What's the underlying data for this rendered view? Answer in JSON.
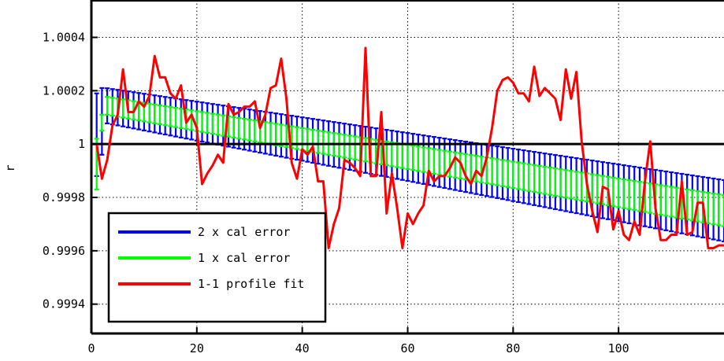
{
  "chart_data": {
    "type": "line",
    "title": "",
    "xlabel": "",
    "ylabel": "r",
    "xlim": [
      0,
      120
    ],
    "ylim": [
      0.99929,
      1.00054
    ],
    "xticks": [
      0,
      20,
      40,
      60,
      80,
      100
    ],
    "xtick_labels": [
      "0",
      "20",
      "40",
      "60",
      "80",
      "100"
    ],
    "yticks": [
      0.9994,
      0.9996,
      0.9998,
      1.0,
      1.0002,
      1.0004
    ],
    "ytick_labels": [
      "0.9994",
      "0.9996",
      "0.9998",
      "1",
      "1.0002",
      "1.0004"
    ],
    "grid": true,
    "reference_line": {
      "y": 1.0,
      "color": "#000000"
    },
    "legend": {
      "placement": "bottom-left",
      "entries": [
        {
          "label": "2 x cal error",
          "color": "#0000ff"
        },
        {
          "label": "1 x cal error",
          "color": "#00ff00"
        },
        {
          "label": "1-1 profile fit",
          "color": "#ff0000"
        }
      ]
    },
    "series": [
      {
        "key": "cal2",
        "style": "errorbar",
        "color": "#0000ff",
        "x_start": 1,
        "x_end": 120,
        "x_step": 1,
        "center_start": 1.00015,
        "center_end": 0.99975,
        "halfwidth_start": 6.5e-05,
        "halfwidth_end": 0.000115,
        "first_points": [
          {
            "x": 1,
            "center": 1.000035,
            "half": 0.000155
          },
          {
            "x": 2,
            "center": 1.000085,
            "half": 0.000125
          }
        ]
      },
      {
        "key": "cal1",
        "style": "errorbar",
        "color": "#00ff00",
        "x_start": 1,
        "x_end": 120,
        "x_step": 1,
        "center_start": 1.00015,
        "center_end": 0.99975,
        "halfwidth_start": 3.3e-05,
        "halfwidth_end": 5.8e-05,
        "first_points": [
          {
            "x": 1,
            "center": 0.999925,
            "half": 9.5e-05
          },
          {
            "x": 2,
            "center": 1.00008,
            "half": 3e-05
          }
        ]
      },
      {
        "key": "fit",
        "style": "line",
        "color": "#ff0000",
        "x": [
          1,
          2,
          3,
          4,
          5,
          6,
          7,
          8,
          9,
          10,
          11,
          12,
          13,
          14,
          15,
          16,
          17,
          18,
          19,
          20,
          21,
          22,
          23,
          24,
          25,
          26,
          27,
          28,
          29,
          30,
          31,
          32,
          33,
          34,
          35,
          36,
          37,
          38,
          39,
          40,
          41,
          42,
          43,
          44,
          45,
          46,
          47,
          48,
          49,
          50,
          51,
          52,
          53,
          54,
          55,
          56,
          57,
          58,
          59,
          60,
          61,
          62,
          63,
          64,
          65,
          66,
          67,
          68,
          69,
          70,
          71,
          72,
          73,
          74,
          75,
          76,
          77,
          78,
          79,
          80,
          81,
          82,
          83,
          84,
          85,
          86,
          87,
          88,
          89,
          90,
          91,
          92,
          93,
          94,
          95,
          96,
          97,
          98,
          99,
          100,
          101,
          102,
          103,
          104,
          105,
          106,
          107,
          108,
          109,
          110,
          111,
          112,
          113,
          114,
          115,
          116,
          117,
          118,
          119,
          120
        ],
        "y": [
          1.0,
          0.99987,
          0.99994,
          1.00007,
          1.00011,
          1.00028,
          1.00012,
          1.00012,
          1.00016,
          1.00014,
          1.00018,
          1.00033,
          1.00025,
          1.00025,
          1.00019,
          1.00017,
          1.00022,
          1.00008,
          1.00011,
          1.00006,
          0.99985,
          0.99989,
          0.99992,
          0.99996,
          0.99993,
          1.00015,
          1.00011,
          1.00012,
          1.00014,
          1.00014,
          1.00016,
          1.00006,
          1.00011,
          1.00021,
          1.00022,
          1.00032,
          1.00017,
          0.99993,
          0.99987,
          0.99998,
          0.99996,
          0.99999,
          0.99986,
          0.99986,
          0.99961,
          0.9997,
          0.99976,
          0.99994,
          0.99993,
          0.99991,
          0.99988,
          1.00036,
          0.99988,
          0.99988,
          1.00012,
          0.99974,
          0.99989,
          0.99976,
          0.99961,
          0.99974,
          0.9997,
          0.99974,
          0.99977,
          0.9999,
          0.99986,
          0.99988,
          0.99988,
          0.99991,
          0.99995,
          0.99993,
          0.99988,
          0.99985,
          0.9999,
          0.99988,
          0.99995,
          1.00006,
          1.0002,
          1.00024,
          1.00025,
          1.00023,
          1.00019,
          1.00019,
          1.00016,
          1.00029,
          1.00018,
          1.00021,
          1.00019,
          1.00017,
          1.00009,
          1.00028,
          1.00017,
          1.00027,
          1.00001,
          0.99985,
          0.99975,
          0.99967,
          0.99984,
          0.99983,
          0.99968,
          0.99975,
          0.99966,
          0.99964,
          0.99971,
          0.99966,
          0.99986,
          1.00001,
          0.99976,
          0.99964,
          0.99964,
          0.99966,
          0.99966,
          0.99986,
          0.99966,
          0.99967,
          0.99978,
          0.99978,
          0.99961,
          0.99961,
          0.99962,
          0.99962
        ]
      }
    ]
  }
}
